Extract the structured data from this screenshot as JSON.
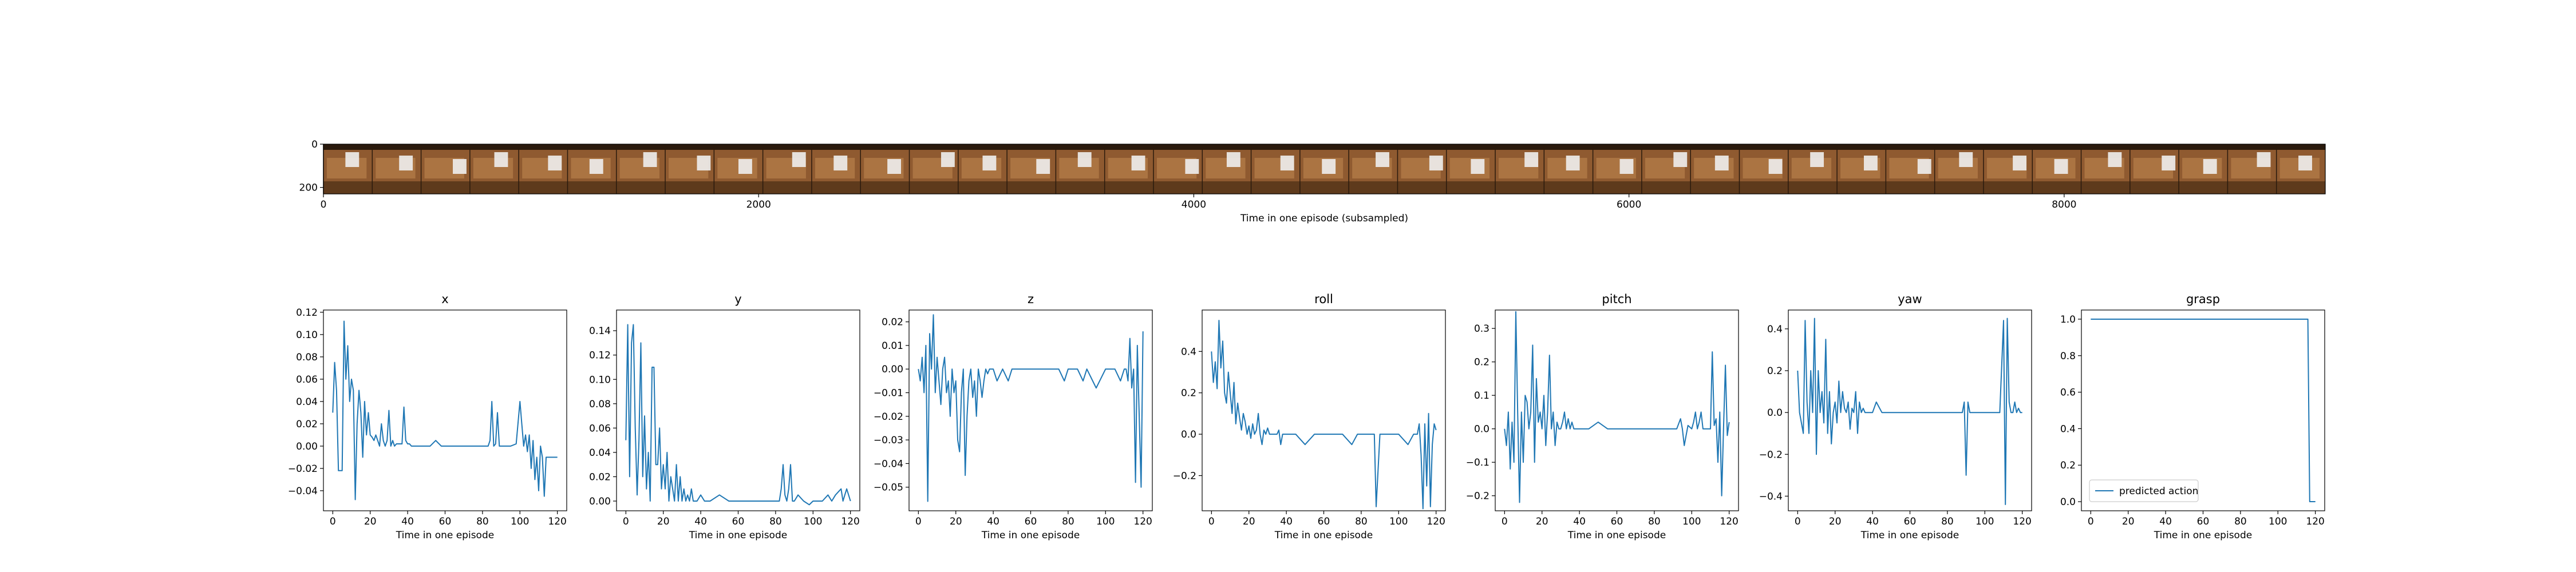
{
  "filmstrip": {
    "xlabel": "Time in one episode (subsampled)",
    "xticks": [
      0,
      2000,
      4000,
      6000,
      8000
    ],
    "yticks": [
      0,
      200
    ],
    "x_range": [
      0,
      9200
    ],
    "y_range": [
      0,
      230
    ],
    "frame_count": 41,
    "colors": {
      "wood": "#8f5a30",
      "wood_dark": "#5e3a1c",
      "wood_light": "#c28a52",
      "object": "#eeeeee",
      "shadow": "#2a1a0d"
    }
  },
  "chart_data": [
    {
      "type": "line",
      "title": "x",
      "xlabel": "Time in one episode",
      "xlim": [
        -5,
        125
      ],
      "ylim": [
        -0.058,
        0.122
      ],
      "xticks": [
        0,
        20,
        40,
        60,
        80,
        100,
        120
      ],
      "ytick_labels": [
        "0.12",
        "0.10",
        "0.08",
        "0.06",
        "0.04",
        "0.02",
        "0.00",
        "−0.02",
        "−0.04"
      ],
      "yticks": [
        0.12,
        0.1,
        0.08,
        0.06,
        0.04,
        0.02,
        0.0,
        -0.02,
        -0.04
      ],
      "color": "#1f77b4",
      "x": [
        0,
        1,
        2,
        3,
        4,
        5,
        6,
        7,
        8,
        9,
        10,
        11,
        12,
        13,
        14,
        15,
        16,
        17,
        18,
        19,
        20,
        21,
        22,
        23,
        24,
        25,
        26,
        27,
        28,
        29,
        30,
        31,
        32,
        33,
        34,
        35,
        36,
        37,
        38,
        39,
        40,
        41,
        42,
        43,
        44,
        45,
        46,
        47,
        48,
        49,
        50,
        52,
        55,
        58,
        60,
        62,
        65,
        70,
        75,
        80,
        83,
        84,
        85,
        86,
        87,
        88,
        89,
        90,
        92,
        95,
        98,
        100,
        101,
        102,
        103,
        104,
        105,
        106,
        107,
        108,
        109,
        110,
        111,
        112,
        113,
        114,
        115,
        116,
        117,
        118,
        119,
        120
      ],
      "y": [
        0.03,
        0.075,
        0.05,
        -0.022,
        -0.022,
        -0.022,
        0.112,
        0.06,
        0.09,
        0.04,
        0.06,
        0.05,
        -0.048,
        0.02,
        0.05,
        0.03,
        -0.01,
        0.04,
        0.01,
        0.03,
        0.01,
        0.008,
        0.005,
        0.01,
        0.005,
        0.0,
        0.02,
        0.005,
        0.0,
        0.005,
        0.032,
        0.0,
        0.005,
        0.0,
        0.002,
        0.002,
        0.002,
        0.002,
        0.035,
        0.005,
        0.002,
        0.002,
        0.0,
        0.0,
        0.0,
        0.0,
        0.0,
        0.0,
        0.0,
        0.0,
        0.0,
        0.0,
        0.005,
        0.0,
        0.0,
        0.0,
        0.0,
        0.0,
        0.0,
        0.0,
        0.0,
        0.005,
        0.04,
        0.0,
        0.002,
        0.03,
        0.0,
        0.0,
        0.0,
        0.0,
        0.002,
        0.04,
        0.02,
        0.0,
        0.01,
        -0.005,
        0.01,
        -0.02,
        0.005,
        -0.03,
        -0.01,
        -0.04,
        0.0,
        -0.01,
        -0.045,
        -0.01,
        -0.01,
        -0.01,
        -0.01,
        -0.01,
        -0.01,
        -0.01
      ]
    },
    {
      "type": "line",
      "title": "y",
      "xlabel": "Time in one episode",
      "xlim": [
        -5,
        125
      ],
      "ylim": [
        -0.008,
        0.157
      ],
      "xticks": [
        0,
        20,
        40,
        60,
        80,
        100,
        120
      ],
      "ytick_labels": [
        "0.14",
        "0.12",
        "0.10",
        "0.08",
        "0.06",
        "0.04",
        "0.02",
        "0.00"
      ],
      "yticks": [
        0.14,
        0.12,
        0.1,
        0.08,
        0.06,
        0.04,
        0.02,
        0.0
      ],
      "color": "#1f77b4",
      "x": [
        0,
        1,
        2,
        3,
        4,
        5,
        6,
        7,
        8,
        9,
        10,
        11,
        12,
        13,
        14,
        15,
        16,
        17,
        18,
        19,
        20,
        21,
        22,
        23,
        24,
        25,
        26,
        27,
        28,
        29,
        30,
        31,
        32,
        33,
        34,
        35,
        36,
        37,
        38,
        40,
        42,
        45,
        50,
        55,
        60,
        65,
        70,
        75,
        80,
        82,
        83,
        84,
        85,
        86,
        87,
        88,
        89,
        90,
        92,
        95,
        98,
        100,
        105,
        108,
        110,
        112,
        115,
        116,
        117,
        118,
        120
      ],
      "y": [
        0.05,
        0.145,
        0.02,
        0.13,
        0.145,
        0.06,
        0.005,
        0.05,
        0.13,
        0.02,
        0.07,
        0.01,
        0.04,
        0.0,
        0.11,
        0.11,
        0.03,
        0.03,
        0.06,
        0.01,
        0.03,
        0.01,
        0.04,
        0.0,
        0.02,
        0.01,
        0.0,
        0.03,
        0.0,
        0.02,
        0.0,
        0.01,
        0.0,
        0.005,
        0.0,
        0.01,
        0.0,
        0.0,
        0.0,
        0.005,
        0.0,
        0.0,
        0.005,
        0.0,
        0.0,
        0.0,
        0.0,
        0.0,
        0.0,
        0.0,
        0.01,
        0.03,
        0.005,
        0.0,
        0.01,
        0.03,
        0.0,
        0.0,
        0.005,
        0.0,
        -0.003,
        0.0,
        0.0,
        0.005,
        0.0,
        0.005,
        0.01,
        0.0,
        0.005,
        0.01,
        0.0
      ]
    },
    {
      "type": "line",
      "title": "z",
      "xlabel": "Time in one episode",
      "xlim": [
        -5,
        125
      ],
      "ylim": [
        -0.06,
        0.025
      ],
      "xticks": [
        0,
        20,
        40,
        60,
        80,
        100,
        120
      ],
      "ytick_labels": [
        "0.02",
        "0.01",
        "0.00",
        "−0.01",
        "−0.02",
        "−0.03",
        "−0.04",
        "−0.05"
      ],
      "yticks": [
        0.02,
        0.01,
        0.0,
        -0.01,
        -0.02,
        -0.03,
        -0.04,
        -0.05
      ],
      "color": "#1f77b4",
      "x": [
        0,
        1,
        2,
        3,
        4,
        5,
        6,
        7,
        8,
        9,
        10,
        11,
        12,
        13,
        14,
        15,
        16,
        17,
        18,
        19,
        20,
        21,
        22,
        23,
        24,
        25,
        26,
        27,
        28,
        29,
        30,
        31,
        32,
        33,
        34,
        35,
        36,
        37,
        38,
        40,
        42,
        45,
        48,
        50,
        52,
        55,
        60,
        65,
        70,
        75,
        78,
        80,
        82,
        85,
        88,
        90,
        95,
        100,
        105,
        108,
        110,
        111,
        112,
        113,
        114,
        115,
        116,
        117,
        118,
        119,
        120
      ],
      "y": [
        0.0,
        -0.005,
        0.005,
        -0.01,
        0.01,
        -0.056,
        0.015,
        0.0,
        0.023,
        -0.01,
        0.005,
        -0.005,
        -0.015,
        0.0,
        0.005,
        -0.01,
        -0.005,
        -0.02,
        0.0,
        -0.01,
        -0.005,
        -0.03,
        -0.035,
        -0.01,
        0.0,
        -0.045,
        -0.02,
        -0.005,
        0.0,
        -0.012,
        -0.005,
        -0.02,
        0.0,
        -0.005,
        -0.012,
        -0.005,
        0.0,
        -0.002,
        0.0,
        0.0,
        -0.005,
        0.0,
        -0.005,
        0.0,
        0.0,
        0.0,
        0.0,
        0.0,
        0.0,
        0.0,
        -0.005,
        0.0,
        0.0,
        0.0,
        -0.005,
        0.0,
        -0.008,
        0.0,
        0.0,
        -0.005,
        0.0,
        0.0,
        -0.005,
        0.013,
        -0.008,
        0.0,
        -0.048,
        0.01,
        -0.02,
        -0.05,
        0.016
      ]
    },
    {
      "type": "line",
      "title": "roll",
      "xlabel": "Time in one episode",
      "xlim": [
        -5,
        125
      ],
      "ylim": [
        -0.37,
        0.6
      ],
      "xticks": [
        0,
        20,
        40,
        60,
        80,
        100,
        120
      ],
      "ytick_labels": [
        "0.4",
        "0.2",
        "0.0",
        "−0.2"
      ],
      "yticks": [
        0.4,
        0.2,
        0.0,
        -0.2
      ],
      "color": "#1f77b4",
      "x": [
        0,
        1,
        2,
        3,
        4,
        5,
        6,
        7,
        8,
        9,
        10,
        11,
        12,
        13,
        14,
        15,
        16,
        17,
        18,
        19,
        20,
        21,
        22,
        23,
        24,
        25,
        26,
        27,
        28,
        29,
        30,
        31,
        32,
        33,
        34,
        35,
        36,
        37,
        38,
        40,
        42,
        45,
        50,
        55,
        60,
        65,
        70,
        75,
        78,
        80,
        82,
        84,
        85,
        86,
        87,
        88,
        90,
        95,
        100,
        105,
        108,
        110,
        111,
        112,
        113,
        114,
        115,
        116,
        117,
        118,
        119,
        120
      ],
      "y": [
        0.4,
        0.25,
        0.35,
        0.22,
        0.55,
        0.32,
        0.45,
        0.2,
        0.15,
        0.3,
        0.2,
        0.1,
        0.25,
        0.05,
        0.15,
        0.08,
        0.02,
        0.1,
        0.06,
        0.0,
        0.04,
        -0.02,
        0.05,
        0.0,
        0.02,
        0.1,
        0.0,
        -0.05,
        0.02,
        0.0,
        0.03,
        0.0,
        0.0,
        0.0,
        0.0,
        0.0,
        0.02,
        -0.05,
        0.0,
        0.0,
        0.0,
        0.0,
        -0.05,
        0.0,
        0.0,
        0.0,
        0.0,
        -0.05,
        0.0,
        0.0,
        0.0,
        0.0,
        0.0,
        0.0,
        0.0,
        -0.35,
        0.0,
        0.0,
        0.0,
        -0.05,
        0.0,
        0.0,
        0.05,
        -0.1,
        -0.36,
        0.05,
        -0.25,
        0.1,
        -0.35,
        -0.05,
        0.05,
        0.02
      ]
    },
    {
      "type": "line",
      "title": "pitch",
      "xlabel": "Time in one episode",
      "xlim": [
        -5,
        125
      ],
      "ylim": [
        -0.245,
        0.355
      ],
      "xticks": [
        0,
        20,
        40,
        60,
        80,
        100,
        120
      ],
      "ytick_labels": [
        "0.3",
        "0.2",
        "0.1",
        "0.0",
        "−0.1",
        "−0.2"
      ],
      "yticks": [
        0.3,
        0.2,
        0.1,
        0.0,
        -0.1,
        -0.2
      ],
      "color": "#1f77b4",
      "x": [
        0,
        1,
        2,
        3,
        4,
        5,
        6,
        7,
        8,
        9,
        10,
        11,
        12,
        13,
        14,
        15,
        16,
        17,
        18,
        19,
        20,
        21,
        22,
        23,
        24,
        25,
        26,
        27,
        28,
        29,
        30,
        31,
        32,
        33,
        34,
        35,
        36,
        37,
        38,
        40,
        42,
        45,
        50,
        55,
        60,
        65,
        70,
        75,
        80,
        85,
        88,
        90,
        92,
        94,
        95,
        96,
        98,
        100,
        101,
        102,
        103,
        104,
        105,
        106,
        108,
        110,
        111,
        112,
        113,
        114,
        115,
        116,
        117,
        118,
        119,
        120
      ],
      "y": [
        0.0,
        -0.05,
        0.05,
        -0.12,
        0.02,
        -0.1,
        0.35,
        0.05,
        -0.22,
        0.05,
        -0.1,
        0.1,
        0.08,
        0.0,
        0.05,
        0.25,
        -0.1,
        0.15,
        0.02,
        0.05,
        0.0,
        0.1,
        -0.05,
        0.05,
        0.22,
        0.0,
        0.05,
        -0.05,
        0.02,
        0.0,
        0.0,
        0.02,
        0.05,
        0.0,
        0.03,
        0.0,
        0.02,
        0.0,
        0.0,
        0.0,
        0.0,
        0.0,
        0.02,
        0.0,
        0.0,
        0.0,
        0.0,
        0.0,
        0.0,
        0.0,
        0.0,
        0.0,
        0.0,
        0.03,
        0.0,
        -0.05,
        0.01,
        0.0,
        0.02,
        0.05,
        0.0,
        0.02,
        0.05,
        0.0,
        0.0,
        0.0,
        0.23,
        0.01,
        0.03,
        -0.1,
        0.05,
        -0.2,
        0.0,
        0.19,
        -0.02,
        0.02
      ]
    },
    {
      "type": "line",
      "title": "yaw",
      "xlabel": "Time in one episode",
      "xlim": [
        -5,
        125
      ],
      "ylim": [
        -0.47,
        0.49
      ],
      "xticks": [
        0,
        20,
        40,
        60,
        80,
        100,
        120
      ],
      "ytick_labels": [
        "0.4",
        "0.2",
        "0.0",
        "−0.2",
        "−0.4"
      ],
      "yticks": [
        0.4,
        0.2,
        0.0,
        -0.2,
        -0.4
      ],
      "color": "#1f77b4",
      "x": [
        0,
        1,
        2,
        3,
        4,
        5,
        6,
        7,
        8,
        9,
        10,
        11,
        12,
        13,
        14,
        15,
        16,
        17,
        18,
        19,
        20,
        21,
        22,
        23,
        24,
        25,
        26,
        27,
        28,
        29,
        30,
        31,
        32,
        33,
        34,
        35,
        36,
        37,
        38,
        40,
        42,
        45,
        50,
        55,
        60,
        65,
        70,
        75,
        80,
        85,
        88,
        89,
        90,
        91,
        92,
        95,
        100,
        105,
        106,
        108,
        110,
        111,
        112,
        113,
        114,
        115,
        116,
        117,
        118,
        119,
        120
      ],
      "y": [
        0.2,
        0.0,
        -0.05,
        -0.1,
        0.44,
        0.05,
        -0.1,
        0.2,
        0.0,
        0.45,
        -0.2,
        0.2,
        0.0,
        0.1,
        -0.05,
        0.35,
        -0.1,
        0.1,
        -0.15,
        0.0,
        0.05,
        -0.05,
        0.15,
        0.0,
        0.1,
        0.02,
        0.0,
        0.05,
        -0.08,
        0.02,
        0.0,
        0.1,
        -0.1,
        0.05,
        0.0,
        0.02,
        0.0,
        0.0,
        0.0,
        0.0,
        0.05,
        0.0,
        0.0,
        0.0,
        0.0,
        0.0,
        0.0,
        0.0,
        0.0,
        0.0,
        0.0,
        0.05,
        -0.3,
        0.05,
        0.0,
        0.0,
        0.0,
        0.0,
        0.0,
        0.0,
        0.44,
        -0.44,
        0.45,
        0.05,
        0.0,
        0.0,
        0.05,
        0.0,
        0.02,
        0.0,
        0.0
      ]
    },
    {
      "type": "line",
      "title": "grasp",
      "xlabel": "Time in one episode",
      "xlim": [
        -5,
        125
      ],
      "ylim": [
        -0.05,
        1.05
      ],
      "xticks": [
        0,
        20,
        40,
        60,
        80,
        100,
        120
      ],
      "ytick_labels": [
        "1.0",
        "0.8",
        "0.6",
        "0.4",
        "0.2",
        "0.0"
      ],
      "yticks": [
        1.0,
        0.8,
        0.6,
        0.4,
        0.2,
        0.0
      ],
      "color": "#1f77b4",
      "legend": "predicted action",
      "legend_position": "lower-left",
      "x": [
        0,
        116,
        117,
        120
      ],
      "y": [
        1.0,
        1.0,
        0.0,
        0.0
      ]
    }
  ]
}
